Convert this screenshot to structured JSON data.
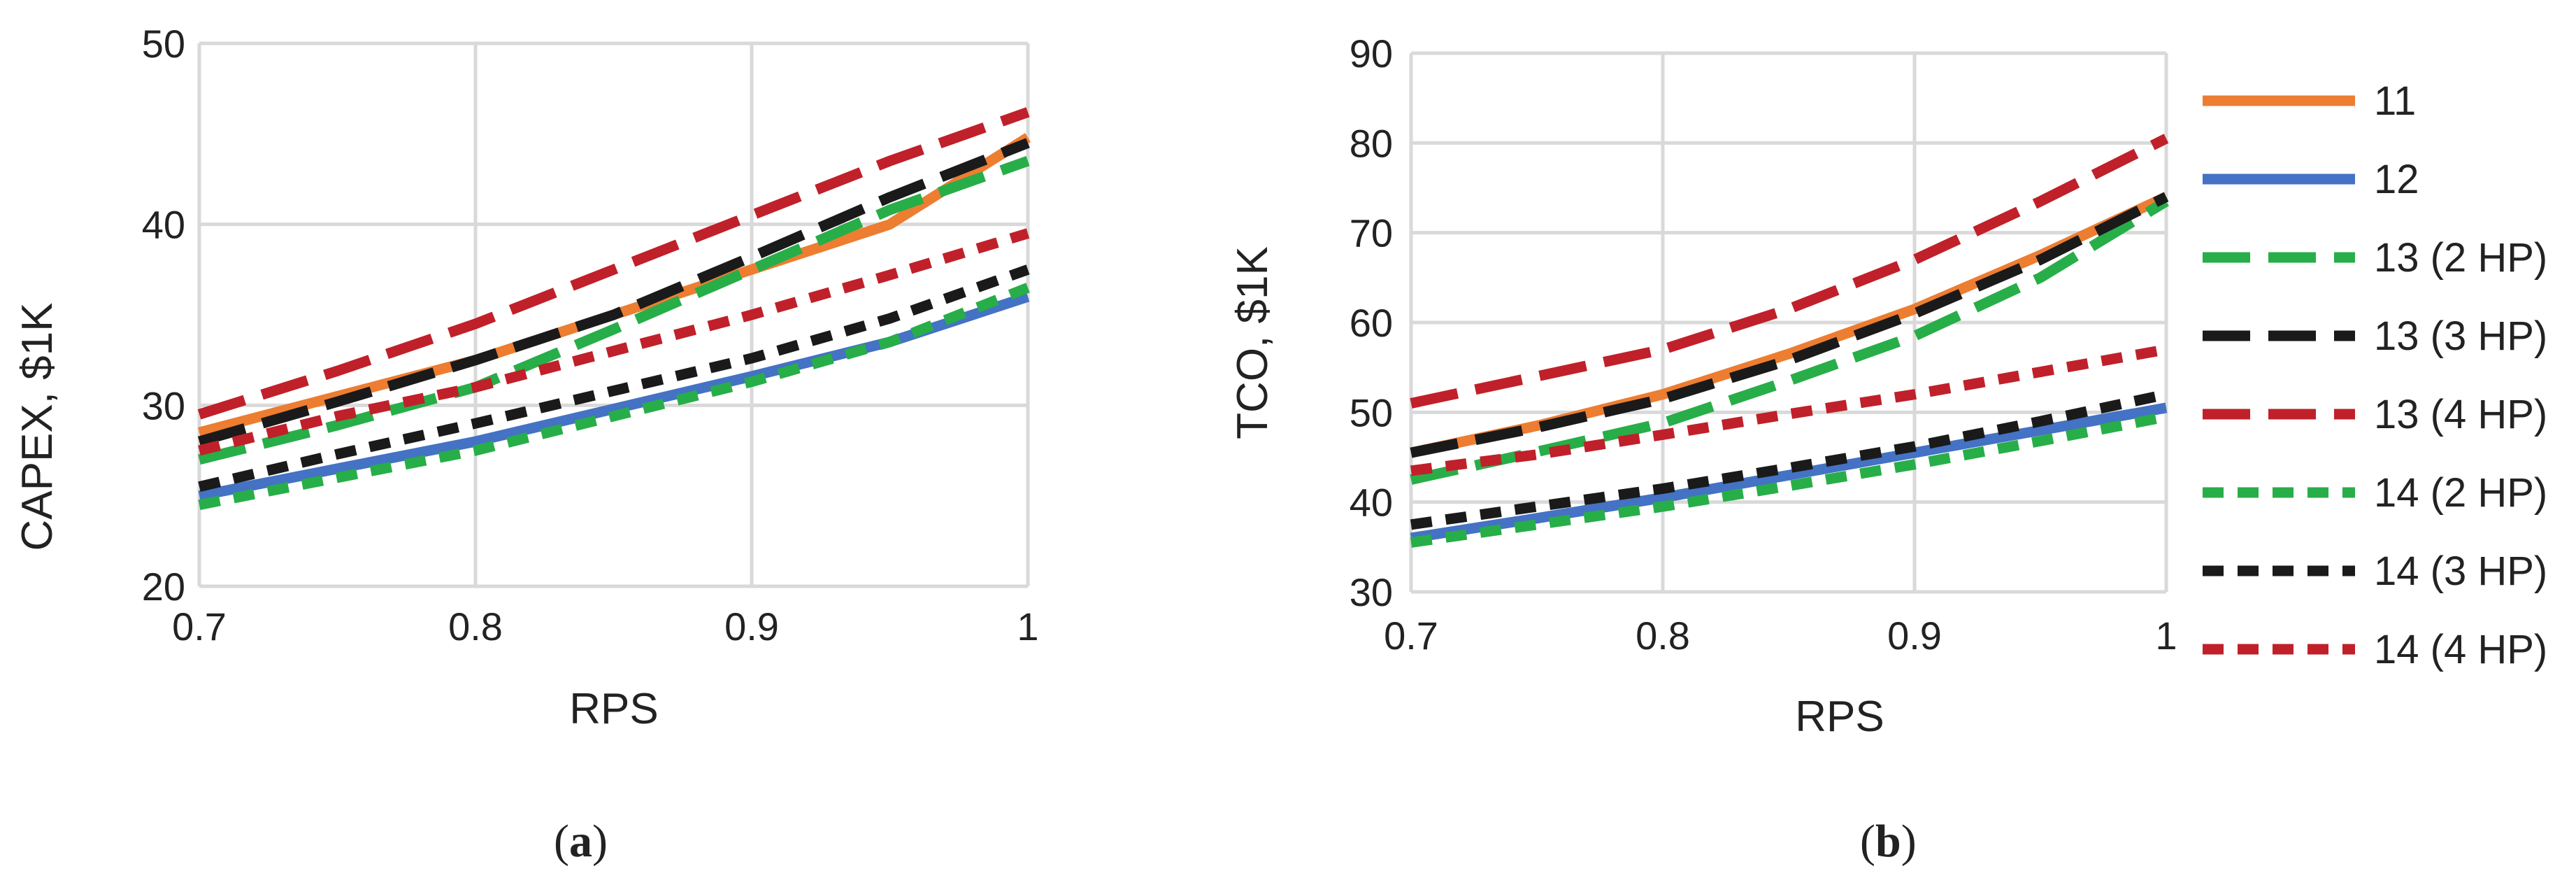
{
  "legend": {
    "entries": [
      {
        "label": "11",
        "color": "#ED7D31",
        "dash": "solid"
      },
      {
        "label": "12",
        "color": "#4472C4",
        "dash": "solid"
      },
      {
        "label": "13 (2 HP)",
        "color": "#27AE48",
        "dash": "long"
      },
      {
        "label": "13 (3 HP)",
        "color": "#1A1A1A",
        "dash": "long"
      },
      {
        "label": "13 (4 HP)",
        "color": "#C0202A",
        "dash": "long"
      },
      {
        "label": "14 (2 HP)",
        "color": "#27AE48",
        "dash": "short"
      },
      {
        "label": "14 (3 HP)",
        "color": "#1A1A1A",
        "dash": "short"
      },
      {
        "label": "14 (4 HP)",
        "color": "#C0202A",
        "dash": "short"
      }
    ]
  },
  "chart_data": [
    {
      "type": "line",
      "panel_label": "a",
      "xlabel": "RPS",
      "ylabel": "CAPEX, $1K",
      "xlim": [
        0.7,
        1.0
      ],
      "ylim": [
        20,
        50
      ],
      "xticks": [
        "0.7",
        "0.8",
        "0.9",
        "1"
      ],
      "yticks": [
        "20",
        "30",
        "40",
        "50"
      ],
      "grid": true,
      "x": [
        0.7,
        0.75,
        0.8,
        0.85,
        0.9,
        0.95,
        1.0
      ],
      "series": [
        {
          "name": "11",
          "values": [
            28.5,
            30.5,
            32.5,
            35.0,
            37.5,
            40.0,
            44.8
          ]
        },
        {
          "name": "12",
          "values": [
            25.0,
            26.5,
            28.0,
            29.8,
            31.6,
            33.5,
            36.0
          ]
        },
        {
          "name": "13 (2 HP)",
          "values": [
            27.0,
            28.9,
            31.0,
            34.2,
            37.5,
            40.8,
            43.5
          ]
        },
        {
          "name": "13 (3 HP)",
          "values": [
            28.0,
            30.2,
            32.5,
            35.0,
            38.2,
            41.5,
            44.5
          ]
        },
        {
          "name": "13 (4 HP)",
          "values": [
            29.5,
            31.9,
            34.5,
            37.5,
            40.5,
            43.5,
            46.2
          ]
        },
        {
          "name": "14 (2 HP)",
          "values": [
            24.5,
            26.0,
            27.5,
            29.4,
            31.3,
            33.5,
            36.5
          ]
        },
        {
          "name": "14 (3 HP)",
          "values": [
            25.5,
            27.3,
            29.0,
            30.8,
            32.6,
            34.8,
            37.5
          ]
        },
        {
          "name": "14 (4 HP)",
          "values": [
            27.5,
            29.4,
            31.0,
            33.0,
            35.0,
            37.2,
            39.5
          ]
        }
      ]
    },
    {
      "type": "line",
      "panel_label": "b",
      "xlabel": "RPS",
      "ylabel": "TCO, $1K",
      "xlim": [
        0.7,
        1.0
      ],
      "ylim": [
        30,
        90
      ],
      "xticks": [
        "0.7",
        "0.8",
        "0.9",
        "1"
      ],
      "yticks": [
        "30",
        "40",
        "50",
        "60",
        "70",
        "80",
        "90"
      ],
      "grid": true,
      "x": [
        0.7,
        0.75,
        0.8,
        0.85,
        0.9,
        0.95,
        1.0
      ],
      "series": [
        {
          "name": "11",
          "values": [
            45.5,
            48.5,
            52.0,
            56.5,
            61.5,
            67.5,
            74.0
          ]
        },
        {
          "name": "12",
          "values": [
            36.0,
            38.2,
            40.5,
            43.0,
            45.5,
            48.0,
            50.5
          ]
        },
        {
          "name": "13 (2 HP)",
          "values": [
            42.5,
            45.6,
            48.8,
            53.5,
            58.5,
            65.0,
            73.5
          ]
        },
        {
          "name": "13 (3 HP)",
          "values": [
            45.5,
            48.3,
            51.5,
            55.8,
            61.0,
            67.0,
            74.0
          ]
        },
        {
          "name": "13 (4 HP)",
          "values": [
            51.0,
            54.0,
            57.0,
            61.5,
            67.0,
            73.5,
            80.5
          ]
        },
        {
          "name": "14 (2 HP)",
          "values": [
            35.5,
            37.5,
            39.5,
            41.8,
            44.2,
            46.8,
            49.5
          ]
        },
        {
          "name": "14 (3 HP)",
          "values": [
            37.5,
            39.5,
            41.5,
            43.8,
            46.2,
            49.0,
            52.0
          ]
        },
        {
          "name": "14 (4 HP)",
          "values": [
            43.5,
            45.3,
            47.5,
            49.8,
            52.0,
            54.5,
            57.0
          ]
        }
      ]
    }
  ]
}
